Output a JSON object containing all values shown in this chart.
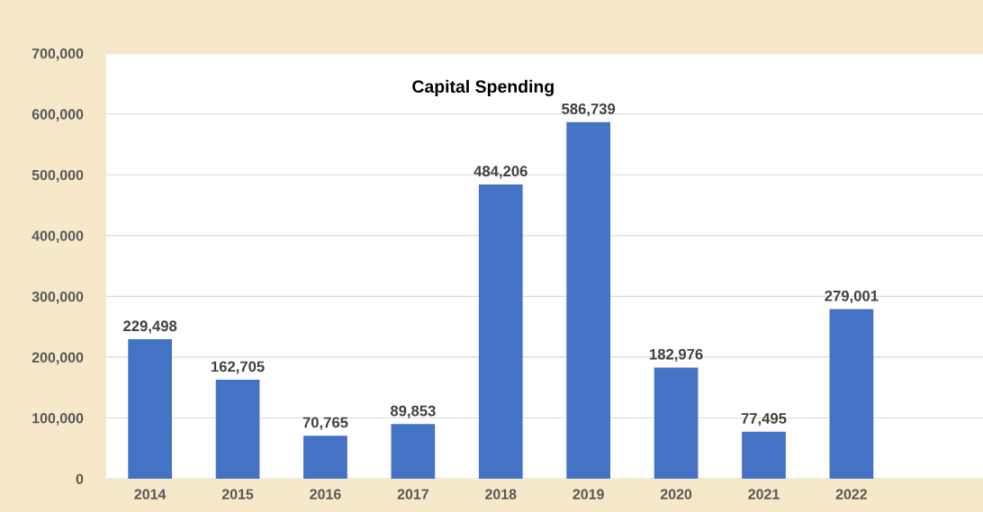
{
  "chart_data": {
    "type": "bar",
    "title": "Capital Spending",
    "categories": [
      "2014",
      "2015",
      "2016",
      "2017",
      "2018",
      "2019",
      "2020",
      "2021",
      "2022",
      null
    ],
    "values": [
      229498,
      162705,
      70765,
      89853,
      484206,
      586739,
      182976,
      77495,
      279001,
      null
    ],
    "color": "#4472c4",
    "ylim": [
      0,
      700000
    ],
    "yticks": [
      {
        "value": 0,
        "label": "0"
      },
      {
        "value": 100000,
        "label": "100,000"
      },
      {
        "value": 200000,
        "label": "200,000"
      },
      {
        "value": 300000,
        "label": "300,000"
      },
      {
        "value": 400000,
        "label": "400,000"
      },
      {
        "value": 500000,
        "label": "500,000"
      },
      {
        "value": 600000,
        "label": "600,000"
      },
      {
        "value": 700000,
        "label": "700,000"
      }
    ],
    "value_labels": [
      "229,498",
      "162,705",
      "70,765",
      "89,853",
      "484,206",
      "586,739",
      "182,976",
      "77,495",
      "279,001",
      null
    ],
    "grid": "y",
    "legend": false
  }
}
